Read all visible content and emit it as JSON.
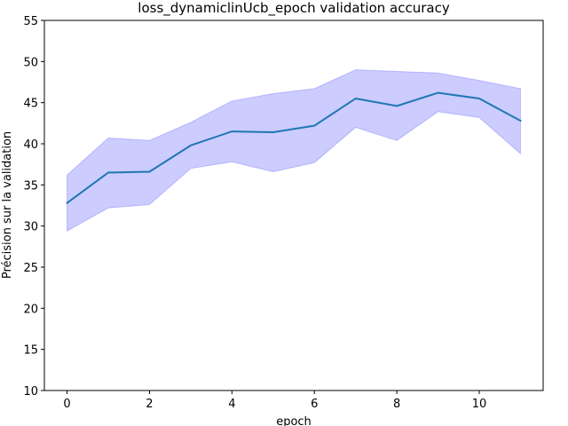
{
  "chart_data": {
    "type": "line",
    "title": "loss_dynamiclinUcb_epoch validation accuracy",
    "xlabel": "epoch",
    "ylabel": "Précision sur la validation",
    "xlim": [
      -0.55,
      11.55
    ],
    "ylim": [
      10,
      55
    ],
    "xticks": [
      0,
      2,
      4,
      6,
      8,
      10
    ],
    "yticks": [
      10,
      15,
      20,
      25,
      30,
      35,
      40,
      45,
      50,
      55
    ],
    "grid": false,
    "legend": "none",
    "series": [
      {
        "x": [
          0,
          1,
          2,
          3,
          4,
          5,
          6,
          7,
          8,
          9,
          10,
          11
        ],
        "values": [
          32.8,
          36.5,
          36.6,
          39.8,
          41.5,
          41.4,
          42.2,
          45.5,
          44.6,
          46.2,
          45.5,
          42.8
        ],
        "lower": [
          29.4,
          32.2,
          32.6,
          37.0,
          37.8,
          36.6,
          37.7,
          42.0,
          40.4,
          43.9,
          43.2,
          38.8
        ],
        "upper": [
          36.2,
          40.7,
          40.4,
          42.6,
          45.2,
          46.1,
          46.7,
          49.0,
          48.8,
          48.6,
          47.7,
          46.7
        ],
        "color": "#1f77b4",
        "band_color": "#0000ff"
      }
    ]
  }
}
